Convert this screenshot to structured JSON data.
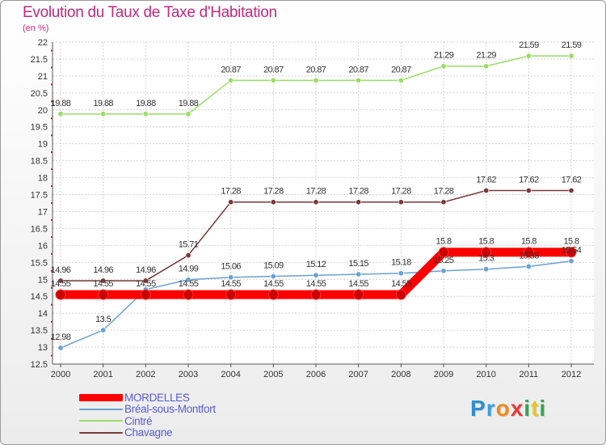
{
  "title": "Evolution du Taux de Taxe d'Habitation",
  "subtitle": "(en %)",
  "logo": {
    "text": "Proxiti",
    "letters": [
      {
        "ch": "P",
        "color": "#2f8fd0"
      },
      {
        "ch": "r",
        "color": "#3aa0de"
      },
      {
        "ch": "o",
        "color": "#f08a1c"
      },
      {
        "ch": "x",
        "color": "#e53a3a"
      },
      {
        "ch": "i",
        "color": "#2fa84f"
      },
      {
        "ch": "t",
        "color": "#f0c419"
      },
      {
        "ch": "i",
        "color": "#2fa84f"
      }
    ]
  },
  "chart_data": {
    "type": "line",
    "title": "Evolution du Taux de Taxe d'Habitation",
    "ylabel": "(en %)",
    "xlabel": "",
    "ylim": [
      12.5,
      22
    ],
    "ytick_step": 0.5,
    "grid": true,
    "legend_position": "bottom-left",
    "categories": [
      "2000",
      "2001",
      "2002",
      "2003",
      "2004",
      "2005",
      "2006",
      "2007",
      "2008",
      "2009",
      "2010",
      "2011",
      "2012"
    ],
    "series": [
      {
        "name": "MORDELLES",
        "color": "#ff0000",
        "thick": true,
        "values": [
          14.55,
          14.55,
          14.55,
          14.55,
          14.55,
          14.55,
          14.55,
          14.55,
          14.55,
          15.8,
          15.8,
          15.8,
          15.8
        ],
        "labels": [
          "14.55",
          "14.55",
          "14.55",
          "14.55",
          "14.55",
          "14.55",
          "14.55",
          "14.55",
          "14.55",
          "15.8",
          "15.8",
          "15.8",
          "15.8"
        ]
      },
      {
        "name": "Bréal-sous-Montfort",
        "color": "#6aa2d2",
        "thick": false,
        "values": [
          12.98,
          13.5,
          14.7,
          14.99,
          15.06,
          15.09,
          15.12,
          15.15,
          15.18,
          15.25,
          15.3,
          15.38,
          15.54
        ],
        "labels": [
          "12.98",
          "13.5",
          "",
          "14.99",
          "15.06",
          "15.09",
          "15.12",
          "15.15",
          "15.18",
          "15.25",
          "15.3",
          "15.38",
          "15.54"
        ]
      },
      {
        "name": "Cintré",
        "color": "#99dd66",
        "thick": false,
        "values": [
          19.88,
          19.88,
          19.88,
          19.88,
          20.87,
          20.87,
          20.87,
          20.87,
          20.87,
          21.29,
          21.29,
          21.59,
          21.59
        ],
        "labels": [
          "19.88",
          "19.88",
          "19.88",
          "19.88",
          "20.87",
          "20.87",
          "20.87",
          "20.87",
          "20.87",
          "21.29",
          "21.29",
          "21.59",
          "21.59"
        ]
      },
      {
        "name": "Chavagne",
        "color": "#7a3a3a",
        "thick": false,
        "values": [
          14.96,
          14.96,
          14.96,
          15.71,
          17.28,
          17.28,
          17.28,
          17.28,
          17.28,
          17.28,
          17.62,
          17.62,
          17.62
        ],
        "labels": [
          "14.96",
          "14.96",
          "14.96",
          "15.71",
          "17.28",
          "17.28",
          "17.28",
          "17.28",
          "17.28",
          "17.28",
          "17.62",
          "17.62",
          "17.62"
        ]
      }
    ]
  }
}
